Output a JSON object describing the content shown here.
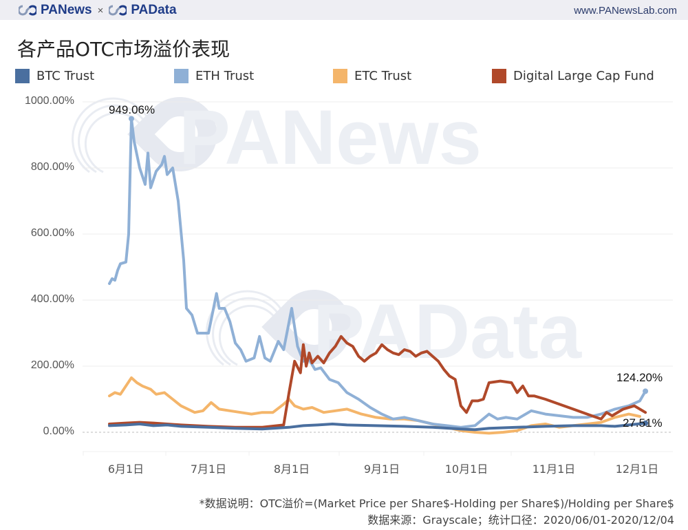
{
  "header": {
    "brand_left": "PANews",
    "brand_sep": "×",
    "brand_right": "PAData",
    "site": "www.PANewsLab.com"
  },
  "watermarks": [
    "PANews",
    "PAData"
  ],
  "colors": {
    "btc": "#4a6f9f",
    "eth": "#8fb0d6",
    "etc": "#f4b56a",
    "dlcf": "#b0492a",
    "brand": "#1f3c88"
  },
  "chart_data": {
    "type": "line",
    "title": "各产品OTC市场溢价表现",
    "xlabel": "",
    "ylabel": "",
    "ylim": [
      0,
      1000
    ],
    "y_ticks": [
      "0.00%",
      "200.00%",
      "400.00%",
      "600.00%",
      "800.00%",
      "1000.00%"
    ],
    "y_tick_values": [
      0,
      200,
      400,
      600,
      800,
      1000
    ],
    "x_ticks": [
      "6月1日",
      "7月1日",
      "8月1日",
      "9月1日",
      "10月1日",
      "11月1日",
      "12月1日"
    ],
    "x_tick_days": [
      0,
      30,
      61,
      92,
      122,
      153,
      183
    ],
    "x_range_days": [
      -6,
      186
    ],
    "grid": true,
    "legend_position": "top",
    "legend": [
      "BTC Trust",
      "ETH Trust",
      "ETC Trust",
      "Digital Large Cap Fund"
    ],
    "annotations": [
      {
        "text": "949.06%",
        "series": "ETH Trust",
        "day": 2,
        "value": 949.06
      },
      {
        "text": "124.20%",
        "series": "ETH Trust",
        "day": 186,
        "value": 124.2
      },
      {
        "text": "27.51%",
        "series": "BTC Trust",
        "day": 186,
        "value": 27.51
      }
    ],
    "series": [
      {
        "name": "BTC Trust",
        "color": "#4a6f9f",
        "days": [
          -6,
          0,
          5,
          10,
          15,
          20,
          30,
          40,
          50,
          60,
          65,
          70,
          75,
          80,
          90,
          100,
          110,
          120,
          125,
          130,
          140,
          150,
          160,
          170,
          175,
          180,
          186
        ],
        "values": [
          20,
          22,
          25,
          20,
          22,
          18,
          15,
          12,
          10,
          15,
          20,
          22,
          25,
          22,
          20,
          18,
          15,
          10,
          8,
          12,
          15,
          18,
          20,
          20,
          18,
          22,
          27.51
        ]
      },
      {
        "name": "ETH Trust",
        "color": "#8fb0d6",
        "days": [
          -6,
          -5,
          -4,
          -3,
          -2,
          0,
          1,
          2,
          3,
          5,
          7,
          8,
          9,
          11,
          13,
          14,
          15,
          17,
          19,
          21,
          22,
          24,
          26,
          30,
          33,
          34,
          36,
          38,
          40,
          42,
          44,
          47,
          49,
          51,
          53,
          56,
          58,
          61,
          63,
          65,
          67,
          69,
          71,
          74,
          77,
          80,
          84,
          88,
          92,
          96,
          100,
          105,
          110,
          115,
          120,
          125,
          130,
          133,
          136,
          140,
          145,
          150,
          155,
          160,
          165,
          170,
          175,
          180,
          184,
          186
        ],
        "values": [
          450,
          465,
          460,
          490,
          510,
          515,
          600,
          949,
          880,
          800,
          750,
          845,
          740,
          790,
          810,
          835,
          780,
          800,
          700,
          520,
          375,
          355,
          300,
          300,
          420,
          375,
          375,
          335,
          270,
          250,
          215,
          225,
          290,
          225,
          215,
          275,
          250,
          375,
          260,
          215,
          220,
          190,
          195,
          160,
          150,
          120,
          100,
          75,
          55,
          40,
          45,
          35,
          25,
          20,
          15,
          20,
          55,
          40,
          45,
          40,
          65,
          55,
          50,
          45,
          45,
          55,
          70,
          80,
          95,
          124.2
        ]
      },
      {
        "name": "ETC Trust",
        "color": "#f4b56a",
        "days": [
          -6,
          -4,
          -2,
          0,
          2,
          4,
          6,
          9,
          11,
          14,
          17,
          20,
          25,
          28,
          31,
          34,
          38,
          42,
          46,
          50,
          54,
          58,
          60,
          62,
          65,
          68,
          72,
          76,
          80,
          85,
          90,
          95,
          100,
          105,
          110,
          115,
          120,
          125,
          130,
          135,
          140,
          145,
          150,
          155,
          160,
          165,
          170,
          175,
          180,
          184
        ],
        "values": [
          110,
          120,
          115,
          140,
          165,
          150,
          140,
          130,
          115,
          120,
          100,
          80,
          60,
          65,
          90,
          70,
          65,
          60,
          55,
          60,
          60,
          85,
          100,
          80,
          70,
          75,
          60,
          65,
          70,
          55,
          45,
          40,
          40,
          35,
          25,
          15,
          5,
          0,
          -3,
          0,
          5,
          20,
          25,
          15,
          20,
          25,
          30,
          45,
          55,
          48
        ]
      },
      {
        "name": "Digital Large Cap Fund",
        "color": "#b0492a",
        "days": [
          -6,
          0,
          5,
          10,
          15,
          20,
          30,
          40,
          50,
          58,
          60,
          62,
          64,
          65,
          66,
          67,
          68,
          70,
          72,
          74,
          76,
          78,
          80,
          82,
          84,
          86,
          88,
          90,
          92,
          94,
          96,
          98,
          100,
          102,
          104,
          106,
          108,
          110,
          112,
          114,
          116,
          118,
          120,
          122,
          124,
          126,
          128,
          130,
          134,
          138,
          140,
          142,
          144,
          146,
          150,
          155,
          160,
          165,
          170,
          172,
          174,
          178,
          182,
          186
        ],
        "values": [
          25,
          28,
          30,
          28,
          25,
          22,
          18,
          15,
          15,
          22,
          120,
          215,
          180,
          265,
          200,
          240,
          210,
          230,
          210,
          240,
          260,
          290,
          270,
          260,
          230,
          215,
          230,
          240,
          265,
          250,
          240,
          235,
          250,
          245,
          230,
          240,
          245,
          230,
          215,
          190,
          170,
          160,
          80,
          60,
          95,
          95,
          100,
          150,
          155,
          150,
          120,
          140,
          110,
          110,
          100,
          85,
          70,
          55,
          40,
          60,
          50,
          70,
          80,
          60
        ]
      }
    ]
  },
  "legend": {
    "items": [
      {
        "label": "BTC Trust",
        "color": "#4a6f9f"
      },
      {
        "label": "ETH Trust",
        "color": "#8fb0d6"
      },
      {
        "label": "ETC Trust",
        "color": "#f4b56a"
      },
      {
        "label": "Digital Large Cap Fund",
        "color": "#b0492a"
      }
    ]
  },
  "footer": {
    "note": "*数据说明：OTC溢价=(Market Price per Share$-Holding per Share$)/Holding per Share$",
    "source": "数据来源：Grayscale；统计口径：2020/06/01-2020/12/04"
  }
}
